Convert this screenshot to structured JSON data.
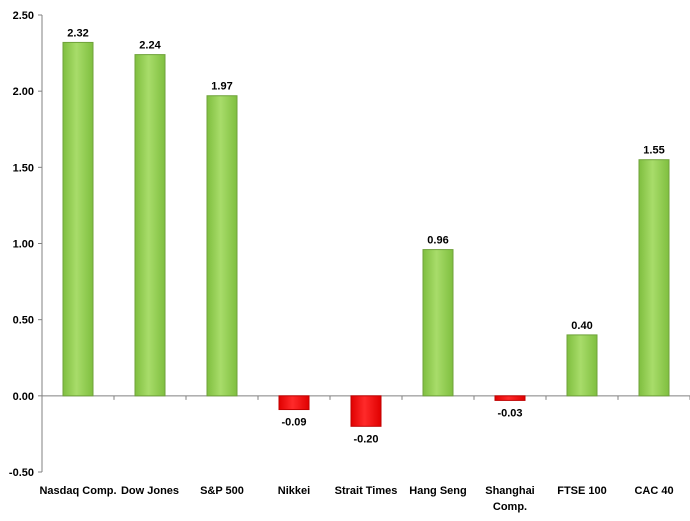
{
  "chart_data": {
    "type": "bar",
    "categories": [
      "Nasdaq Comp.",
      "Dow Jones",
      "S&P 500",
      "Nikkei",
      "Strait Times",
      "Hang Seng",
      "Shanghai Comp.",
      "FTSE 100",
      "CAC 40"
    ],
    "category_lines": [
      [
        "Nasdaq Comp."
      ],
      [
        "Dow Jones"
      ],
      [
        "S&P 500"
      ],
      [
        "Nikkei"
      ],
      [
        "Strait Times"
      ],
      [
        "Hang Seng"
      ],
      [
        "Shanghai",
        "Comp."
      ],
      [
        "FTSE 100"
      ],
      [
        "CAC 40"
      ]
    ],
    "values": [
      2.32,
      2.24,
      1.97,
      -0.09,
      -0.2,
      0.96,
      -0.03,
      0.4,
      1.55
    ],
    "data_labels": [
      "2.32",
      "2.24",
      "1.97",
      "-0.09",
      "-0.20",
      "0.96",
      "-0.03",
      "0.40",
      "1.55"
    ],
    "ylim": [
      -0.5,
      2.5
    ],
    "yticks": [
      2.5,
      2.0,
      1.5,
      1.0,
      0.5,
      0.0,
      -0.5
    ],
    "ytick_labels": [
      "2.50",
      "2.00",
      "1.50",
      "1.00",
      "0.50",
      "0.00",
      "-0.50"
    ],
    "title": "",
    "xlabel": "",
    "ylabel": "",
    "grid": false,
    "legend": "none",
    "colors": {
      "positive": "#92d050",
      "positive_edge": "#6fa23a",
      "negative": "#ff0000",
      "axis": "#808080"
    }
  }
}
